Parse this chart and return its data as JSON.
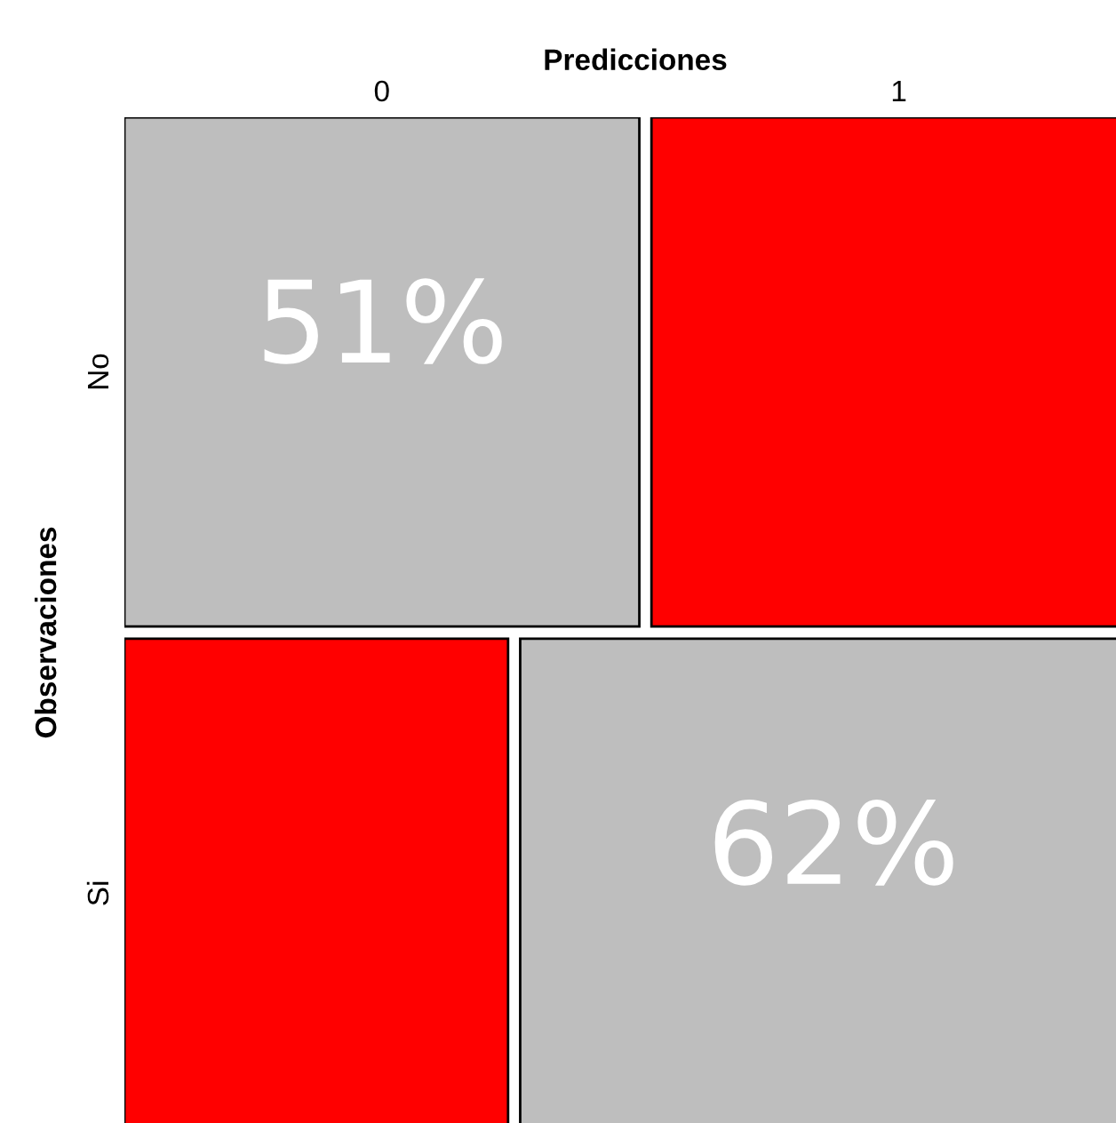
{
  "chart_data": {
    "type": "other",
    "xlabel": "Predicciones",
    "ylabel": "Observaciones",
    "categories": [
      "0",
      "1"
    ],
    "y_categories": [
      "No",
      "Si"
    ],
    "values": [
      51,
      62
    ],
    "value_labels": [
      "51%",
      "62%"
    ],
    "colors": [
      "#bebebe",
      "#bebebe"
    ]
  }
}
